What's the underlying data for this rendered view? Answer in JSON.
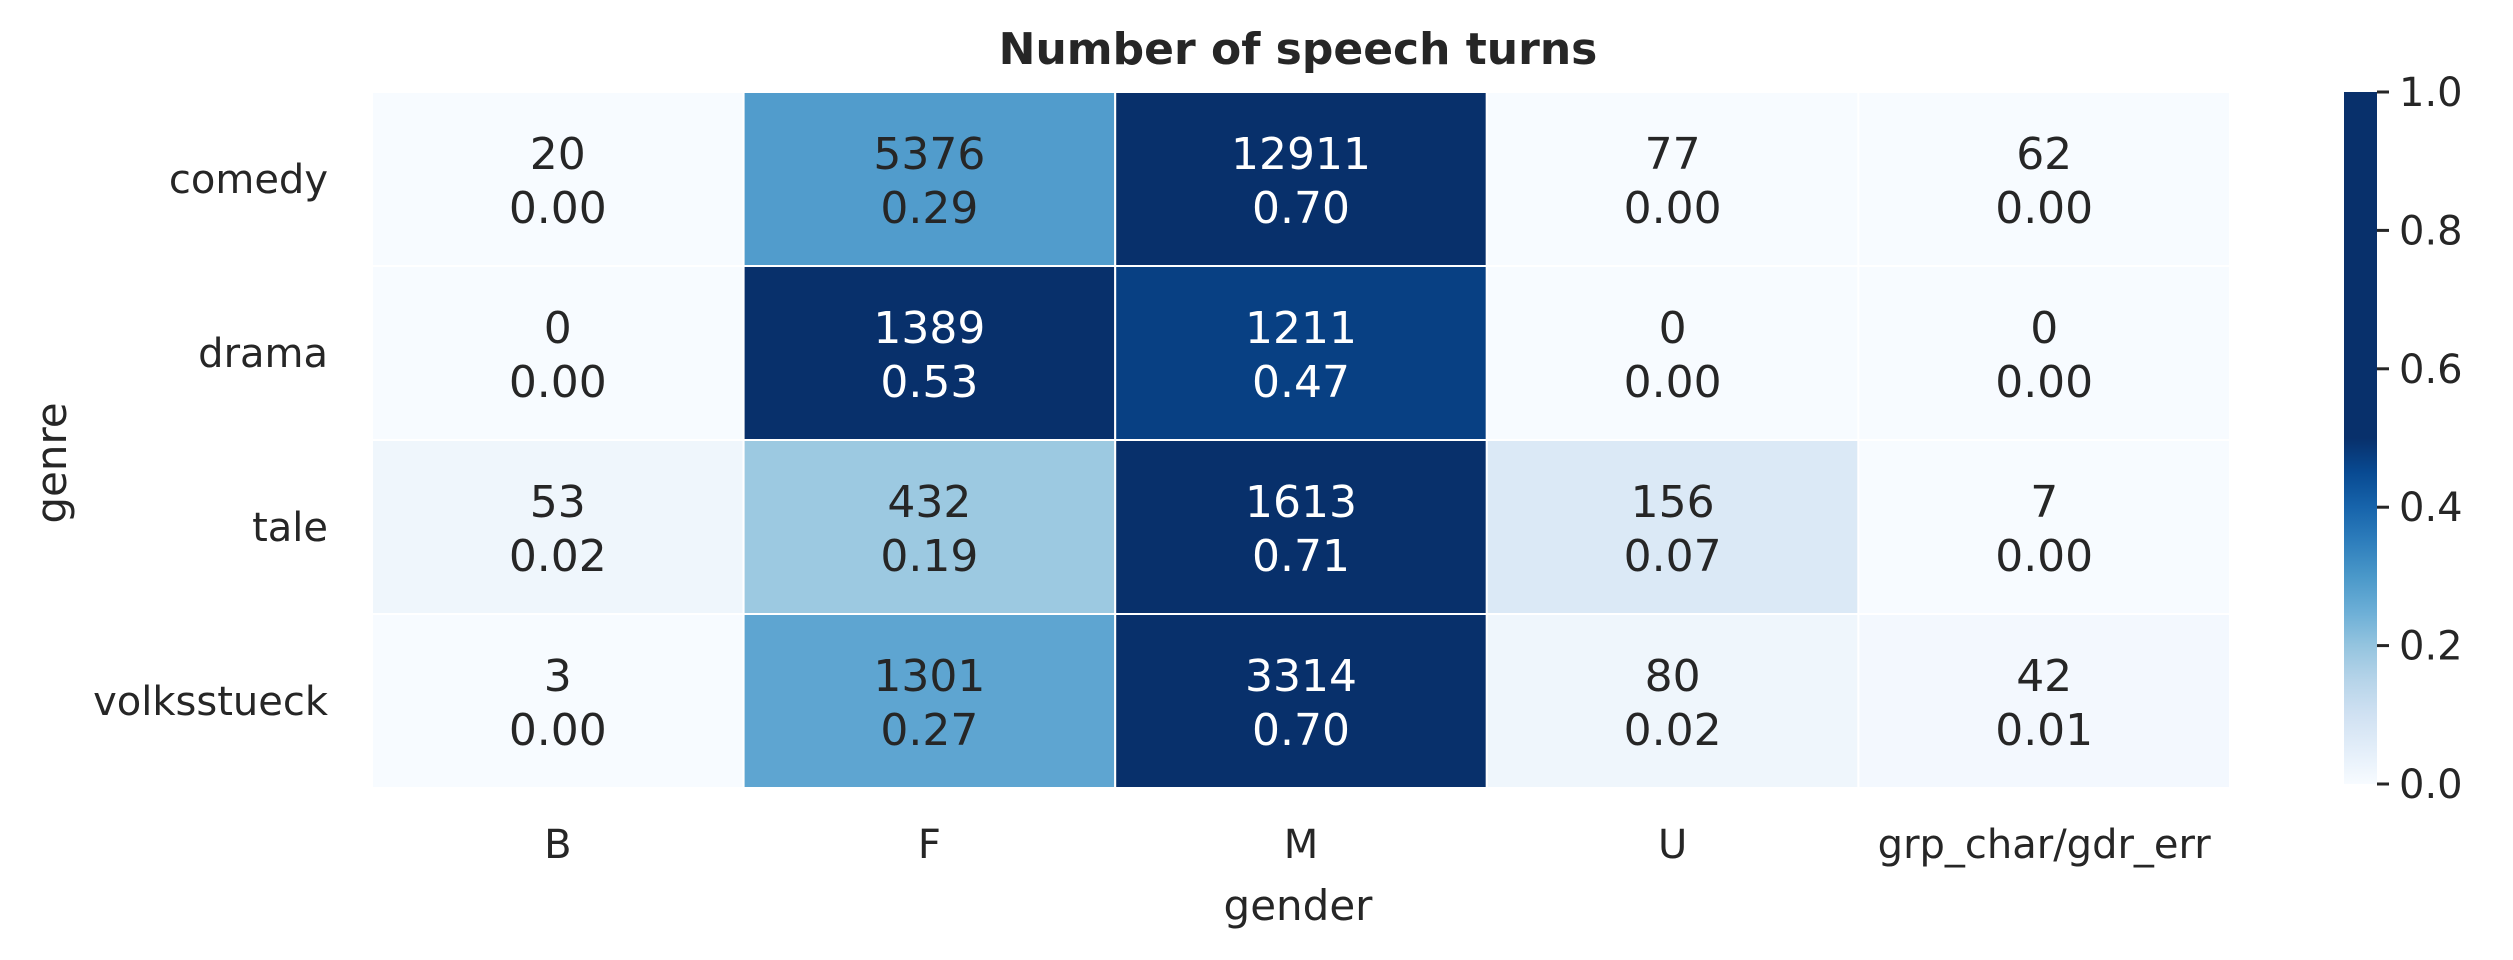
{
  "chart_data": {
    "type": "heatmap",
    "title": "Number of speech turns",
    "xlabel": "gender",
    "ylabel": "genre",
    "x_categories": [
      "B",
      "F",
      "M",
      "U",
      "grp_char/gdr_err"
    ],
    "y_categories": [
      "comedy",
      "drama",
      "tale",
      "volksstueck"
    ],
    "counts": [
      [
        20,
        5376,
        12911,
        77,
        62
      ],
      [
        0,
        1389,
        1211,
        0,
        0
      ],
      [
        53,
        432,
        1613,
        156,
        7
      ],
      [
        3,
        1301,
        3314,
        80,
        42
      ]
    ],
    "proportions": [
      [
        0.0,
        0.29,
        0.7,
        0.0,
        0.0
      ],
      [
        0.0,
        0.53,
        0.47,
        0.0,
        0.0
      ],
      [
        0.02,
        0.19,
        0.71,
        0.07,
        0.0
      ],
      [
        0.0,
        0.27,
        0.7,
        0.02,
        0.01
      ]
    ],
    "count_labels": [
      [
        "20",
        "5376",
        "12911",
        "77",
        "62"
      ],
      [
        "0",
        "1389",
        "1211",
        "0",
        "0"
      ],
      [
        "53",
        "432",
        "1613",
        "156",
        "7"
      ],
      [
        "3",
        "1301",
        "3314",
        "80",
        "42"
      ]
    ],
    "proportion_labels": [
      [
        "0.00",
        "0.29",
        "0.70",
        "0.00",
        "0.00"
      ],
      [
        "0.00",
        "0.53",
        "0.47",
        "0.00",
        "0.00"
      ],
      [
        "0.02",
        "0.19",
        "0.71",
        "0.07",
        "0.00"
      ],
      [
        "0.00",
        "0.27",
        "0.70",
        "0.02",
        "0.01"
      ]
    ],
    "colorbar": {
      "range": [
        0.0,
        1.0
      ],
      "ticks": [
        0.0,
        0.2,
        0.4,
        0.6,
        0.8,
        1.0
      ],
      "tick_labels": [
        "0.0",
        "0.2",
        "0.4",
        "0.6",
        "0.8",
        "1.0"
      ],
      "vmax_effective": 0.5
    },
    "colormap": [
      "#f7fbff",
      "#deebf7",
      "#c6dbef",
      "#9ecae1",
      "#6baed6",
      "#4292c6",
      "#2171b5",
      "#08519c",
      "#08306b"
    ],
    "grid": false,
    "legend": "colorbar-right"
  }
}
